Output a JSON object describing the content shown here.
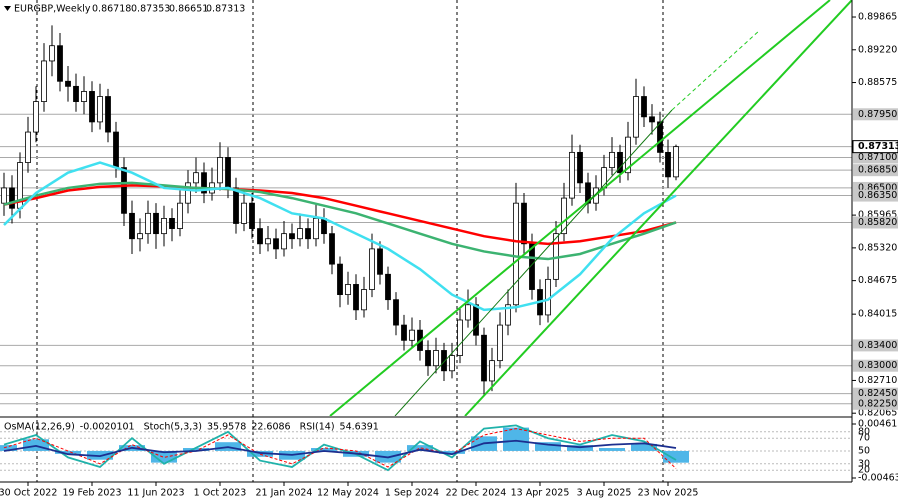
{
  "chart_data": [
    {
      "type": "candlestick",
      "title": "EURGBP,Weekly",
      "open": [
        0.862,
        0.865,
        0.861,
        0.87,
        0.876,
        0.882,
        0.89,
        0.893,
        0.886,
        0.885,
        0.882,
        0.884,
        0.878,
        0.883,
        0.876,
        0.869,
        0.86,
        0.855,
        0.856,
        0.86,
        0.856,
        0.859,
        0.857,
        0.862,
        0.866,
        0.868,
        0.864,
        0.866,
        0.871,
        0.865,
        0.858,
        0.862,
        0.857,
        0.854,
        0.855,
        0.853,
        0.856,
        0.855,
        0.857,
        0.855,
        0.859,
        0.856,
        0.85,
        0.844,
        0.846,
        0.841,
        0.845,
        0.853,
        0.848,
        0.843,
        0.838,
        0.835,
        0.837,
        0.833,
        0.83,
        0.833,
        0.829,
        0.832,
        0.839,
        0.842,
        0.836,
        0.827,
        0.831,
        0.838,
        0.842,
        0.862,
        0.854,
        0.845,
        0.84,
        0.847,
        0.856,
        0.863,
        0.872,
        0.866,
        0.862,
        0.865,
        0.869,
        0.872,
        0.868,
        0.875,
        0.883,
        0.879,
        0.878,
        0.872,
        0.86718
      ],
      "high": [
        0.868,
        0.8675,
        0.872,
        0.879,
        0.885,
        0.8935,
        0.897,
        0.8955,
        0.889,
        0.8875,
        0.887,
        0.886,
        0.8855,
        0.8845,
        0.878,
        0.871,
        0.8625,
        0.859,
        0.8625,
        0.862,
        0.8615,
        0.861,
        0.8645,
        0.8685,
        0.871,
        0.87,
        0.869,
        0.874,
        0.873,
        0.867,
        0.8645,
        0.864,
        0.859,
        0.8575,
        0.857,
        0.8585,
        0.858,
        0.86,
        0.859,
        0.862,
        0.861,
        0.8575,
        0.8515,
        0.8485,
        0.848,
        0.8475,
        0.856,
        0.8545,
        0.8495,
        0.8445,
        0.84,
        0.8395,
        0.839,
        0.835,
        0.8355,
        0.8345,
        0.8345,
        0.8415,
        0.845,
        0.8435,
        0.8375,
        0.8335,
        0.8405,
        0.845,
        0.866,
        0.864,
        0.856,
        0.847,
        0.8495,
        0.8585,
        0.866,
        0.8755,
        0.8735,
        0.868,
        0.8675,
        0.8715,
        0.875,
        0.8735,
        0.878,
        0.8865,
        0.885,
        0.8815,
        0.88,
        0.8745,
        0.87353
      ],
      "low": [
        0.8595,
        0.858,
        0.859,
        0.868,
        0.874,
        0.88,
        0.887,
        0.884,
        0.882,
        0.88,
        0.8795,
        0.876,
        0.8765,
        0.874,
        0.867,
        0.8575,
        0.852,
        0.8525,
        0.854,
        0.853,
        0.8535,
        0.8545,
        0.8555,
        0.86,
        0.864,
        0.862,
        0.8625,
        0.8645,
        0.863,
        0.856,
        0.8565,
        0.855,
        0.852,
        0.8525,
        0.851,
        0.8515,
        0.853,
        0.8535,
        0.853,
        0.8535,
        0.854,
        0.848,
        0.8415,
        0.842,
        0.839,
        0.8395,
        0.8435,
        0.846,
        0.841,
        0.836,
        0.833,
        0.8335,
        0.831,
        0.828,
        0.8285,
        0.827,
        0.8275,
        0.8305,
        0.8375,
        0.834,
        0.824,
        0.825,
        0.8295,
        0.836,
        0.8405,
        0.852,
        0.843,
        0.838,
        0.8385,
        0.8455,
        0.8545,
        0.8615,
        0.864,
        0.86,
        0.8605,
        0.8635,
        0.8675,
        0.866,
        0.8665,
        0.8735,
        0.877,
        0.8755,
        0.87,
        0.865,
        0.86651
      ],
      "close": [
        0.865,
        0.861,
        0.87,
        0.876,
        0.882,
        0.89,
        0.893,
        0.886,
        0.885,
        0.882,
        0.884,
        0.878,
        0.883,
        0.876,
        0.869,
        0.86,
        0.855,
        0.856,
        0.86,
        0.856,
        0.859,
        0.857,
        0.862,
        0.866,
        0.868,
        0.864,
        0.866,
        0.871,
        0.865,
        0.858,
        0.862,
        0.857,
        0.854,
        0.855,
        0.853,
        0.856,
        0.855,
        0.857,
        0.855,
        0.859,
        0.856,
        0.85,
        0.844,
        0.846,
        0.841,
        0.845,
        0.853,
        0.848,
        0.843,
        0.838,
        0.835,
        0.837,
        0.833,
        0.83,
        0.833,
        0.829,
        0.832,
        0.839,
        0.842,
        0.836,
        0.827,
        0.831,
        0.838,
        0.842,
        0.862,
        0.854,
        0.845,
        0.84,
        0.847,
        0.856,
        0.863,
        0.872,
        0.866,
        0.862,
        0.865,
        0.869,
        0.872,
        0.868,
        0.875,
        0.883,
        0.879,
        0.878,
        0.872,
        0.86718,
        0.87313
      ],
      "ma_x": [
        0,
        4,
        8,
        12,
        16,
        20,
        24,
        28,
        32,
        36,
        40,
        44,
        48,
        52,
        56,
        60,
        64,
        68,
        72,
        76,
        80,
        84
      ],
      "moving_averages": [
        {
          "color": "#ff0000",
          "values": [
            0.8617,
            0.863,
            0.8645,
            0.8652,
            0.8655,
            0.8653,
            0.865,
            0.8648,
            0.8645,
            0.864,
            0.863,
            0.8615,
            0.86,
            0.8585,
            0.857,
            0.8555,
            0.8545,
            0.854,
            0.8545,
            0.8555,
            0.8565,
            0.8582
          ]
        },
        {
          "color": "#3cb371",
          "values": [
            0.8617,
            0.8635,
            0.865,
            0.8658,
            0.866,
            0.8655,
            0.865,
            0.8648,
            0.8642,
            0.863,
            0.8615,
            0.86,
            0.858,
            0.856,
            0.854,
            0.8525,
            0.8515,
            0.851,
            0.852,
            0.854,
            0.856,
            0.8582
          ]
        },
        {
          "color": "#40e0f0",
          "values": [
            0.8577,
            0.864,
            0.868,
            0.87,
            0.868,
            0.865,
            0.8645,
            0.865,
            0.863,
            0.86,
            0.859,
            0.856,
            0.853,
            0.849,
            0.844,
            0.841,
            0.8415,
            0.843,
            0.848,
            0.855,
            0.86,
            0.8635
          ]
        }
      ],
      "ylim": [
        0.8201,
        0.902
      ],
      "yticks": [
        0.89865,
        {
          "value": 0.8922,
          "label": "0.89220"
        },
        0.88575,
        0.85965,
        {
          "value": 0.8532,
          "label": "0.85320"
        },
        0.84675,
        0.84015,
        {
          "value": 0.8271,
          "label": "0.82710"
        },
        0.82065
      ],
      "levels": [
        {
          "value": 0.8795,
          "label": "0.87950"
        },
        {
          "value": 0.871,
          "label": "0.87100"
        },
        {
          "value": 0.8685,
          "label": "0.86850"
        },
        {
          "value": 0.865,
          "label": "0.86500"
        },
        {
          "value": 0.8635,
          "label": "0.86350"
        },
        {
          "value": 0.8582,
          "label": "0.85820"
        },
        {
          "value": 0.834,
          "label": "0.83400"
        },
        {
          "value": 0.83,
          "label": "0.83000"
        },
        {
          "value": 0.8245,
          "label": "0.82450"
        },
        {
          "value": 0.8225,
          "label": "0.82250"
        }
      ],
      "xlim": [
        0,
        84
      ],
      "xticks": [
        {
          "value": 3,
          "label": "30 Oct 2022"
        },
        {
          "value": 11,
          "label": "19 Feb 2023"
        },
        {
          "value": 19,
          "label": "11 Jun 2023"
        },
        {
          "value": 27,
          "label": "1 Oct 2023"
        },
        {
          "value": 35,
          "label": "21 Jan 2024"
        },
        {
          "value": 43,
          "label": "12 May 2024"
        },
        {
          "value": 51,
          "label": "1 Sep 2024"
        },
        {
          "value": 59,
          "label": "22 Dec 2024"
        },
        {
          "value": 67,
          "label": "13 Apr 2025"
        },
        {
          "value": 75,
          "label": "3 Aug 2025"
        },
        {
          "value": 83,
          "label": "23 Nov 2025"
        }
      ]
    },
    {
      "type": "oscillator",
      "x": [
        0,
        4,
        8,
        12,
        16,
        20,
        24,
        28,
        32,
        36,
        40,
        44,
        48,
        52,
        56,
        60,
        64,
        68,
        72,
        76,
        80,
        84
      ],
      "series": [
        {
          "name": "OsMA(12,26,9)",
          "kind": "bar",
          "axis": "y2",
          "color": "#4fb6e8",
          "values": [
            0.001,
            0.002,
            -0.0005,
            -0.0015,
            0.001,
            -0.002,
            0.0005,
            0.0015,
            -0.001,
            -0.0015,
            0.0005,
            -0.001,
            -0.002,
            0.001,
            -0.0005,
            0.0025,
            0.004,
            0.0015,
            0.001,
            0.0005,
            0.0012,
            -0.0020101
          ]
        },
        {
          "name": "Stoch(5,3,3)",
          "kind": "line",
          "color": "#20b2aa",
          "values": [
            60,
            75,
            40,
            25,
            70,
            30,
            55,
            80,
            35,
            25,
            60,
            45,
            20,
            65,
            40,
            85,
            90,
            70,
            60,
            75,
            65,
            35.9578
          ],
          "signal_color": "#ff0000",
          "signal": [
            55,
            70,
            50,
            30,
            60,
            40,
            50,
            75,
            45,
            30,
            55,
            50,
            25,
            55,
            45,
            75,
            85,
            75,
            65,
            70,
            70,
            22.6086
          ]
        },
        {
          "name": "RSI(14)",
          "kind": "line",
          "color": "#1c2f8f",
          "values": [
            50,
            58,
            45,
            42,
            55,
            48,
            50,
            56,
            47,
            44,
            50,
            46,
            40,
            52,
            45,
            62,
            66,
            60,
            56,
            60,
            62,
            54.6391
          ]
        }
      ],
      "ylim": [
        0,
        100
      ],
      "yticks": [
        20,
        30,
        50,
        70,
        80
      ],
      "y2lim": [
        -0.004631,
        0.0046135
      ],
      "y2ticks": [
        -0.004631,
        0.0046135
      ]
    }
  ]
}
